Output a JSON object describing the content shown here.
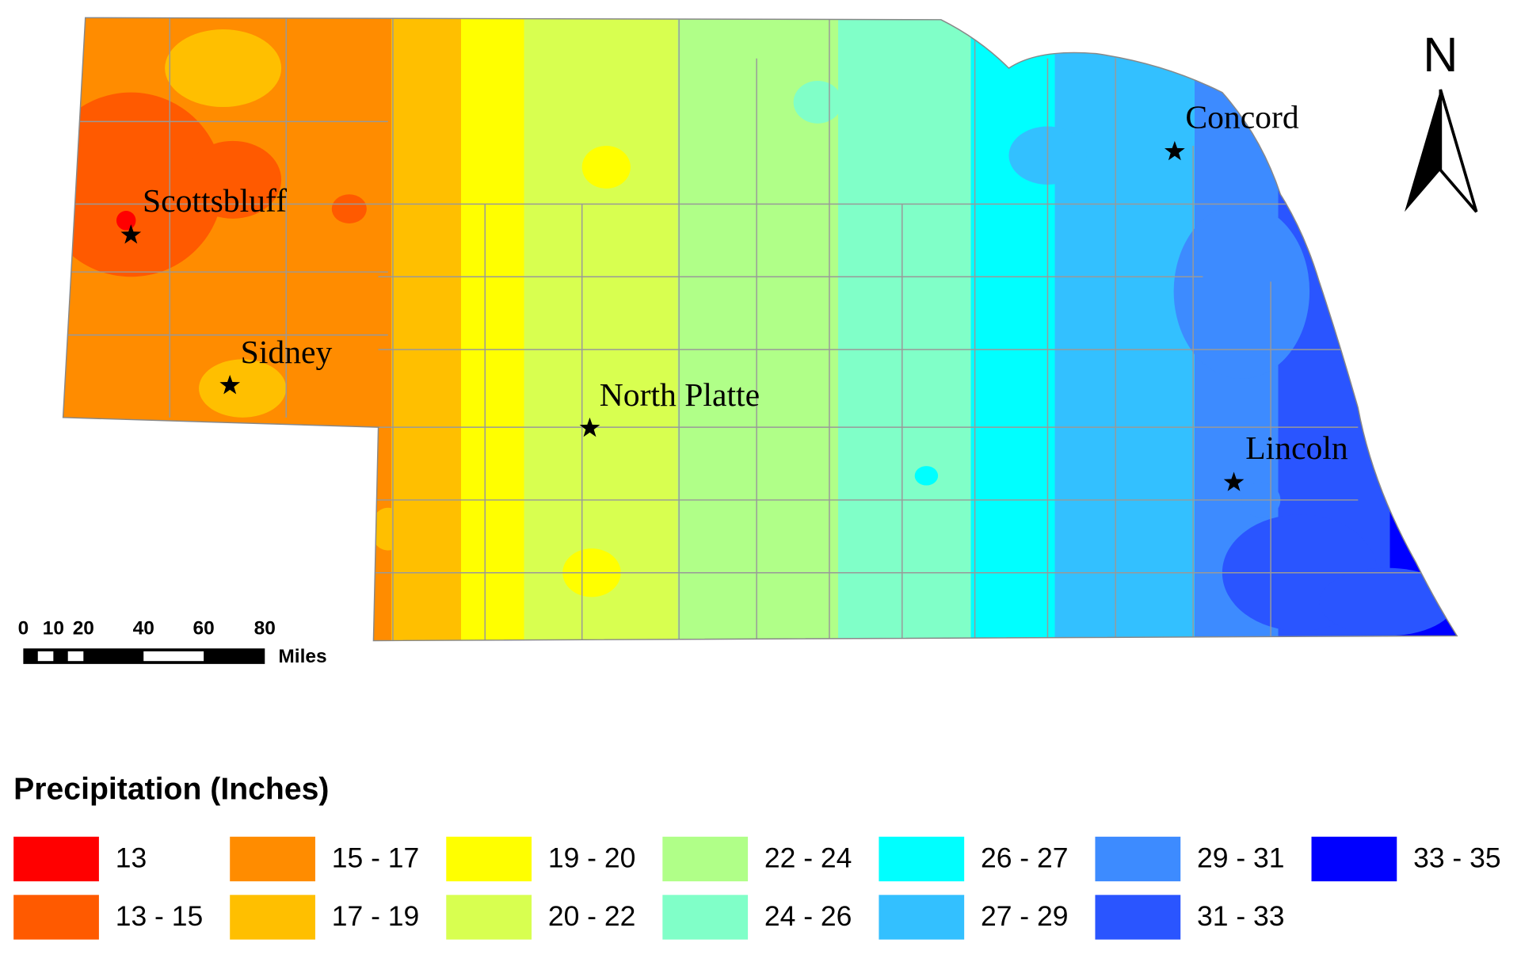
{
  "map": {
    "north_label": "N",
    "cities": [
      {
        "label": "Scottsbluff"
      },
      {
        "label": "Sidney"
      },
      {
        "label": "North Platte"
      },
      {
        "label": "Concord"
      },
      {
        "label": "Lincoln"
      }
    ],
    "scale_bar": {
      "ticks": [
        "0",
        "10",
        "20",
        "40",
        "60",
        "80"
      ],
      "unit": "Miles"
    }
  },
  "legend": {
    "title": "Precipitation (Inches)",
    "items": [
      {
        "label": "13",
        "color": "#ff0000"
      },
      {
        "label": "13 - 15",
        "color": "#ff5a00"
      },
      {
        "label": "15 - 17",
        "color": "#ff8c00"
      },
      {
        "label": "17 - 19",
        "color": "#ffbf00"
      },
      {
        "label": "19 - 20",
        "color": "#ffff00"
      },
      {
        "label": "20 - 22",
        "color": "#d8ff50"
      },
      {
        "label": "22 - 24",
        "color": "#b0ff88"
      },
      {
        "label": "24 - 26",
        "color": "#80ffc8"
      },
      {
        "label": "26 - 27",
        "color": "#00ffff"
      },
      {
        "label": "27 - 29",
        "color": "#33c0ff"
      },
      {
        "label": "29 - 31",
        "color": "#3d8bff"
      },
      {
        "label": "31 - 33",
        "color": "#2a55ff"
      },
      {
        "label": "33 - 35",
        "color": "#0000ff"
      }
    ]
  }
}
